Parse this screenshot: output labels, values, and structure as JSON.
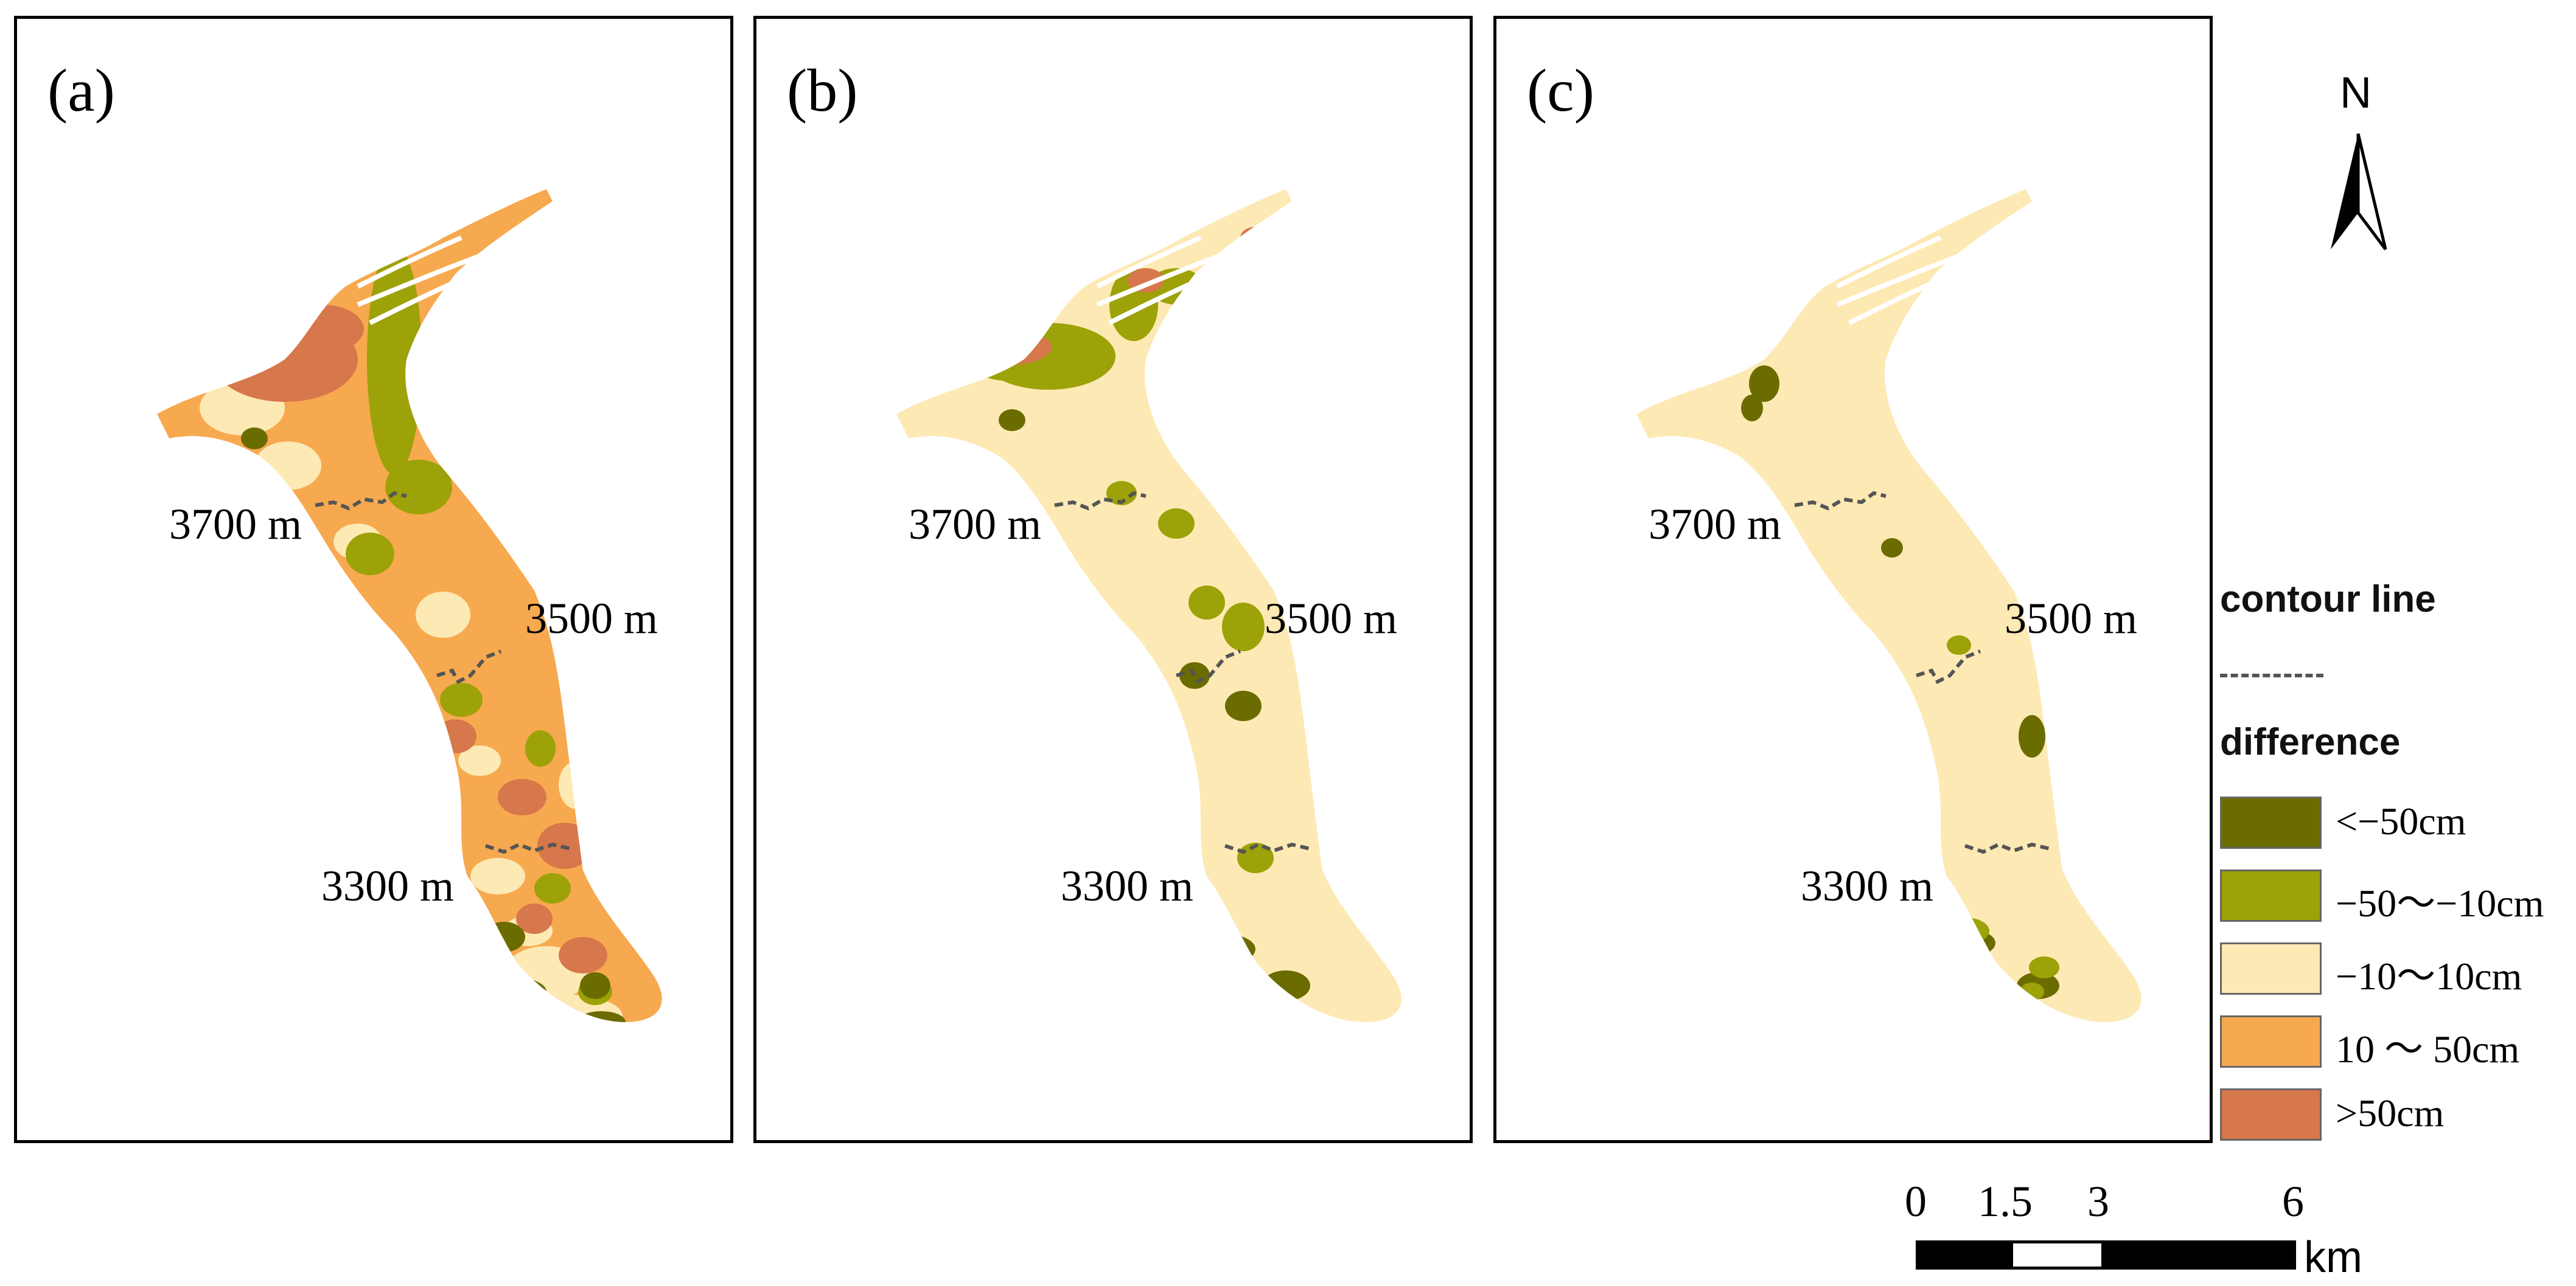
{
  "panels": [
    {
      "label": "(a)",
      "fill": "#F7A94F",
      "contour_labels": [
        "3700 m",
        "3500 m",
        "3300 m"
      ],
      "patches": [
        {
          "cls": "c_lt10",
          "spots": [
            [
              370,
              640,
              70,
              45
            ],
            [
              445,
              735,
              55,
              40
            ],
            [
              560,
              860,
              40,
              30
            ],
            [
              700,
              980,
              45,
              38
            ],
            [
              790,
              1410,
              45,
              30
            ],
            [
              870,
              1570,
              70,
              45
            ],
            [
              905,
              1640,
              90,
              35
            ],
            [
              920,
              1260,
              30,
              40
            ],
            [
              760,
              1220,
              35,
              25
            ],
            [
              500,
              950,
              30,
              25
            ],
            [
              610,
              1130,
              28,
              22
            ],
            [
              840,
              1500,
              40,
              25
            ]
          ]
        },
        {
          "cls": "c_gt50",
          "spots": [
            [
              440,
              560,
              120,
              70
            ],
            [
              500,
              510,
              70,
              40
            ],
            [
              760,
              430,
              30,
              25
            ],
            [
              830,
              1280,
              40,
              30
            ],
            [
              900,
              1360,
              45,
              38
            ],
            [
              850,
              1480,
              30,
              25
            ],
            [
              930,
              1540,
              40,
              30
            ],
            [
              720,
              1180,
              35,
              28
            ]
          ]
        },
        {
          "cls": "c_mid",
          "spots": [
            [
              620,
              560,
              45,
              190
            ],
            [
              660,
              770,
              55,
              45
            ],
            [
              580,
              880,
              40,
              35
            ],
            [
              730,
              1120,
              35,
              28
            ],
            [
              880,
              1430,
              30,
              25
            ],
            [
              950,
              1600,
              28,
              22
            ],
            [
              860,
              1200,
              25,
              30
            ]
          ]
        },
        {
          "cls": "c_ltm50",
          "spots": [
            [
              810,
              1600,
              60,
              25
            ],
            [
              960,
              1650,
              40,
              18
            ],
            [
              800,
              1510,
              35,
              25
            ],
            [
              950,
              1590,
              25,
              22
            ],
            [
              390,
              690,
              22,
              18
            ]
          ]
        }
      ]
    },
    {
      "label": "(b)",
      "fill": "#FDE9B4",
      "contour_labels": [
        "3700 m",
        "3500 m",
        "3300 m"
      ],
      "patches": [
        {
          "cls": "c_lt10",
          "spots": [
            [
              370,
              640,
              70,
              45
            ],
            [
              470,
              760,
              55,
              40
            ],
            [
              540,
              880,
              50,
              40
            ],
            [
              580,
              990,
              45,
              38
            ],
            [
              690,
              1050,
              55,
              45
            ],
            [
              800,
              1200,
              55,
              45
            ],
            [
              830,
              1320,
              60,
              45
            ],
            [
              760,
              1420,
              50,
              40
            ],
            [
              870,
              1500,
              60,
              40
            ],
            [
              920,
              1560,
              60,
              40
            ],
            [
              640,
              1170,
              45,
              35
            ],
            [
              720,
              1290,
              40,
              35
            ],
            [
              820,
              1090,
              35,
              30
            ],
            [
              600,
              900,
              30,
              25
            ]
          ]
        },
        {
          "cls": "c_mid",
          "spots": [
            [
              480,
              555,
              110,
              55
            ],
            [
              410,
              560,
              60,
              35
            ],
            [
              620,
              470,
              40,
              60
            ],
            [
              690,
              440,
              45,
              30
            ],
            [
              800,
              1000,
              35,
              40
            ],
            [
              690,
              830,
              30,
              25
            ],
            [
              740,
              960,
              30,
              28
            ],
            [
              820,
              1380,
              30,
              25
            ],
            [
              600,
              780,
              25,
              20
            ]
          ]
        },
        {
          "cls": "c_gt50",
          "spots": [
            [
              410,
              540,
              75,
              30
            ],
            [
              640,
              430,
              30,
              20
            ],
            [
              820,
              360,
              25,
              18
            ]
          ]
        },
        {
          "cls": "c_ltm50",
          "spots": [
            [
              840,
              1660,
              90,
              35
            ],
            [
              870,
              1590,
              40,
              25
            ],
            [
              770,
              1530,
              50,
              25
            ],
            [
              690,
              1440,
              35,
              25
            ],
            [
              800,
              1130,
              30,
              25
            ],
            [
              720,
              1080,
              25,
              22
            ],
            [
              420,
              660,
              22,
              18
            ]
          ]
        }
      ]
    },
    {
      "label": "(c)",
      "fill": "#FDE9B4",
      "contour_labels": [
        "3700 m",
        "3500 m",
        "3300 m"
      ],
      "patches": [
        {
          "cls": "c_lt10",
          "spots": [
            [
              360,
              650,
              75,
              50
            ],
            [
              470,
              760,
              65,
              45
            ],
            [
              560,
              880,
              60,
              45
            ],
            [
              650,
              990,
              65,
              50
            ],
            [
              780,
              1080,
              60,
              45
            ],
            [
              860,
              1200,
              60,
              45
            ],
            [
              880,
              1320,
              55,
              45
            ],
            [
              820,
              1440,
              55,
              45
            ],
            [
              900,
              1520,
              50,
              35
            ],
            [
              930,
              1600,
              45,
              30
            ],
            [
              700,
              1150,
              35,
              28
            ],
            [
              760,
              1260,
              30,
              28
            ]
          ]
        },
        {
          "cls": "c_ltm50",
          "spots": [
            [
              440,
              600,
              25,
              30
            ],
            [
              420,
              640,
              18,
              22
            ],
            [
              830,
              1660,
              90,
              35
            ],
            [
              740,
              1520,
              80,
              30
            ],
            [
              700,
              1440,
              40,
              25
            ],
            [
              890,
              1590,
              35,
              22
            ],
            [
              880,
              1180,
              22,
              35
            ],
            [
              650,
              870,
              18,
              16
            ]
          ]
        },
        {
          "cls": "c_mid",
          "spots": [
            [
              770,
              1500,
              40,
              22
            ],
            [
              900,
              1560,
              25,
              18
            ],
            [
              760,
              1030,
              20,
              16
            ],
            [
              880,
              1600,
              20,
              15
            ],
            [
              1000,
              1680,
              22,
              15
            ]
          ]
        }
      ]
    }
  ],
  "north_arrow": {
    "label": "N"
  },
  "legend": {
    "contour_title": "contour line",
    "difference_title": "difference",
    "items": [
      {
        "label": "<−50cm",
        "color": "#6B6C00"
      },
      {
        "label": "−50～−10cm",
        "color": "#9CA208"
      },
      {
        "label": "−10～10cm",
        "color": "#FDE9B4"
      },
      {
        "label": "10 ～ 50cm",
        "color": "#F7A94F"
      },
      {
        "label": ">50cm",
        "color": "#D7774C"
      }
    ]
  },
  "scale_bar": {
    "ticks": [
      "0",
      "1.5",
      "3",
      "6"
    ],
    "unit": "km"
  },
  "colors": {
    "c_ltm50": "#6B6C00",
    "c_mid": "#9CA208",
    "c_lt10": "#FDE9B4",
    "c_10to50": "#F7A94F",
    "c_gt50": "#D7774C",
    "contour": "#555555"
  }
}
